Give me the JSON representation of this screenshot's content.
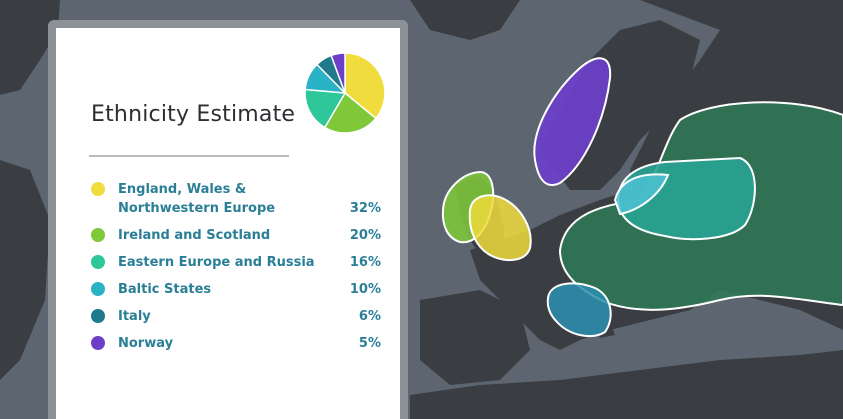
{
  "card": {
    "title": "Ethnicity Estimate"
  },
  "colors": {
    "map_sea": "#5d6670",
    "map_land": "#3a3d42",
    "panel_frame": "#8c9298",
    "label_text": "#2a7f97"
  },
  "chart_data": {
    "type": "pie",
    "categories": [
      "England, Wales & Northwestern Europe",
      "Ireland and Scotland",
      "Eastern Europe and Russia",
      "Baltic States",
      "Italy",
      "Norway"
    ],
    "values": [
      32,
      20,
      16,
      10,
      6,
      5
    ],
    "colors": [
      "#f0dc3c",
      "#7ec83a",
      "#2dc79a",
      "#2ab3c7",
      "#1f7a8c",
      "#6d3fc9"
    ]
  },
  "ethnicities": [
    {
      "name": "England, Wales & Northwestern Europe",
      "percent": "32%",
      "color": "#f0dc3c"
    },
    {
      "name": "Ireland and Scotland",
      "percent": "20%",
      "color": "#7ec83a"
    },
    {
      "name": "Eastern Europe and Russia",
      "percent": "16%",
      "color": "#2dc79a"
    },
    {
      "name": "Baltic States",
      "percent": "10%",
      "color": "#2ab3c7"
    },
    {
      "name": "Italy",
      "percent": "6%",
      "color": "#1f7a8c"
    },
    {
      "name": "Norway",
      "percent": "5%",
      "color": "#6d3fc9"
    }
  ]
}
